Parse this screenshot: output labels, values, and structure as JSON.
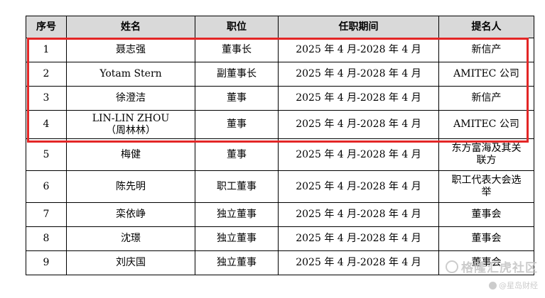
{
  "table": {
    "headers": [
      "序号",
      "姓名",
      "职位",
      "任职期间",
      "提名人"
    ],
    "rows": [
      {
        "no": "1",
        "name": "聂志强",
        "position": "董事长",
        "term": "2025 年 4 月-2028 年 4 月",
        "nominator": "新信产"
      },
      {
        "no": "2",
        "name": "Yotam Stern",
        "position": "副董事长",
        "term": "2025 年 4 月-2028 年 4 月",
        "nominator": "AMITEC 公司"
      },
      {
        "no": "3",
        "name": "徐澄洁",
        "position": "董事",
        "term": "2025 年 4 月-2028 年 4 月",
        "nominator": "新信产"
      },
      {
        "no": "4",
        "name": "LIN-LIN ZHOU",
        "name_line2": "（周林林）",
        "position": "董事",
        "term": "2025 年 4 月-2028 年 4 月",
        "nominator": "AMITEC 公司"
      },
      {
        "no": "5",
        "name": "梅健",
        "position": "董事",
        "term": "2025 年 4 月-2028 年 4 月",
        "nominator": "东方富海及其关",
        "nominator_line2": "联方"
      },
      {
        "no": "6",
        "name": "陈先明",
        "position": "职工董事",
        "term": "2025 年 4 月-2028 年 4 月",
        "nominator": "职工代表大会选",
        "nominator_line2": "举"
      },
      {
        "no": "7",
        "name": "栾依峥",
        "position": "独立董事",
        "term": "2025 年 4 月-2028 年 4 月",
        "nominator": "董事会"
      },
      {
        "no": "8",
        "name": "沈璟",
        "position": "独立董事",
        "term": "2025 年 4 月-2028 年 4 月",
        "nominator": "董事会"
      },
      {
        "no": "9",
        "name": "刘庆国",
        "position": "独立董事",
        "term": "2025 年 4 月-2028 年 4 月",
        "nominator": "董事会"
      }
    ]
  },
  "highlight": {
    "color": "#e32626"
  },
  "watermark": {
    "line1": "格隆汇虎社区",
    "line2": "@星岛财经",
    "logo_icon": "gelonghui-logo-icon"
  }
}
